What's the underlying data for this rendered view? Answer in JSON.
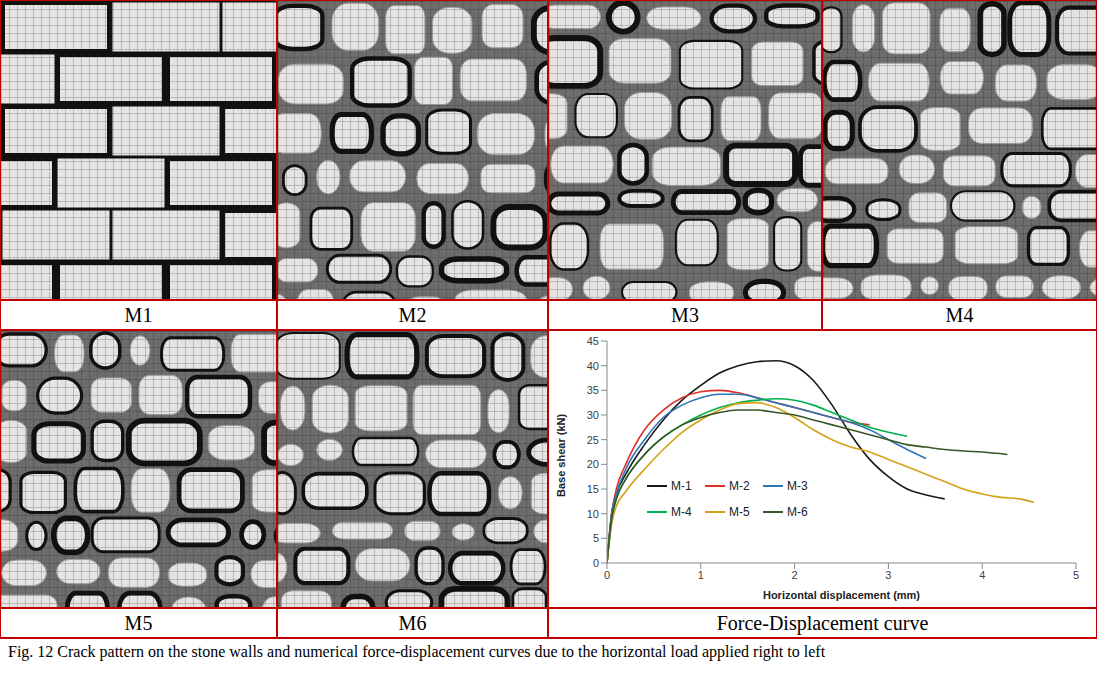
{
  "panels": [
    {
      "label": "M1"
    },
    {
      "label": "M2"
    },
    {
      "label": "M3"
    },
    {
      "label": "M4"
    },
    {
      "label": "M5"
    },
    {
      "label": "M6"
    }
  ],
  "chart_label": "Force-Displacement curve",
  "caption": "Fig. 12 Crack pattern on the stone walls and numerical force-displacement curves due to the horizontal load applied right to left",
  "chart_data": {
    "type": "line",
    "x_label": "Horizontal displacement (mm)",
    "y_label": "Base shear (kN)",
    "xlim": [
      0,
      5
    ],
    "xticks": [
      0,
      1,
      2,
      3,
      4,
      5
    ],
    "ylim": [
      0,
      45
    ],
    "yticks": [
      0,
      5,
      10,
      15,
      20,
      25,
      30,
      35,
      40,
      45
    ],
    "grid": false,
    "legend": "lower left",
    "series": [
      {
        "name": "M-1",
        "color": "#1a1a1a",
        "x": [
          0,
          0.05,
          0.1,
          0.2,
          0.4,
          0.6,
          0.8,
          1.0,
          1.2,
          1.4,
          1.6,
          1.8,
          2.0,
          2.2,
          2.4,
          2.6,
          2.8,
          3.0,
          3.2,
          3.4,
          3.6
        ],
        "values": [
          0,
          10,
          14,
          18,
          24,
          29,
          33,
          36,
          38.5,
          40,
          40.8,
          41,
          40,
          37,
          32,
          26,
          21,
          17.5,
          15,
          13.8,
          13
        ]
      },
      {
        "name": "M-2",
        "color": "#e0302a",
        "x": [
          0,
          0.05,
          0.1,
          0.2,
          0.4,
          0.6,
          0.8,
          1.0,
          1.2,
          1.4,
          1.6,
          1.8,
          2.0,
          2.2,
          2.4,
          2.6,
          2.8
        ],
        "values": [
          0,
          10,
          15,
          20,
          27,
          31,
          33.5,
          34.7,
          35,
          34.5,
          33.5,
          32.5,
          31.5,
          30.5,
          29.5,
          28.5,
          28
        ]
      },
      {
        "name": "M-3",
        "color": "#2e75b6",
        "x": [
          0,
          0.05,
          0.1,
          0.2,
          0.4,
          0.6,
          0.8,
          1.0,
          1.2,
          1.4,
          1.6,
          1.8,
          2.0,
          2.2,
          2.4,
          2.6,
          2.8,
          3.0,
          3.2,
          3.4
        ],
        "values": [
          0,
          10,
          14,
          19,
          25,
          29.5,
          32,
          33.5,
          34.2,
          34.2,
          33.5,
          32.5,
          31.5,
          30.5,
          29.5,
          28.5,
          27,
          25,
          23,
          21.2
        ]
      },
      {
        "name": "M-4",
        "color": "#00b050",
        "x": [
          0,
          0.05,
          0.1,
          0.2,
          0.4,
          0.6,
          0.8,
          1.0,
          1.2,
          1.4,
          1.6,
          1.8,
          2.0,
          2.2,
          2.4,
          2.6,
          2.8,
          3.0,
          3.2
        ],
        "values": [
          0,
          9,
          13,
          17,
          22,
          25.5,
          28,
          30,
          31.5,
          32.5,
          33,
          33.3,
          33,
          32,
          30.5,
          29,
          27.5,
          26.5,
          25.7
        ]
      },
      {
        "name": "M-5",
        "color": "#d4a017",
        "x": [
          0,
          0.05,
          0.1,
          0.2,
          0.4,
          0.6,
          0.8,
          1.0,
          1.2,
          1.4,
          1.6,
          1.8,
          2.0,
          2.2,
          2.4,
          2.6,
          2.8,
          3.0,
          3.2,
          3.4,
          3.6,
          3.8,
          4.0,
          4.2,
          4.4,
          4.55
        ],
        "values": [
          0,
          8,
          11.5,
          14.5,
          19,
          23,
          26.5,
          29,
          31,
          32.3,
          32.5,
          31.5,
          29.5,
          27,
          25,
          23.5,
          22.5,
          21,
          19.5,
          18,
          16.5,
          15,
          14,
          13.3,
          13,
          12.3
        ]
      },
      {
        "name": "M-6",
        "color": "#375623",
        "x": [
          0,
          0.05,
          0.1,
          0.2,
          0.4,
          0.6,
          0.8,
          1.0,
          1.2,
          1.4,
          1.6,
          1.8,
          2.0,
          2.2,
          2.4,
          2.6,
          2.8,
          3.0,
          3.2,
          3.4,
          3.6,
          3.8,
          4.0,
          4.27
        ],
        "values": [
          0,
          9,
          13,
          17,
          22,
          25.5,
          28,
          29.5,
          30.5,
          31,
          31,
          30.5,
          30,
          29,
          28,
          27,
          26,
          25,
          24,
          23.5,
          23,
          22.7,
          22.5,
          22
        ]
      }
    ]
  }
}
